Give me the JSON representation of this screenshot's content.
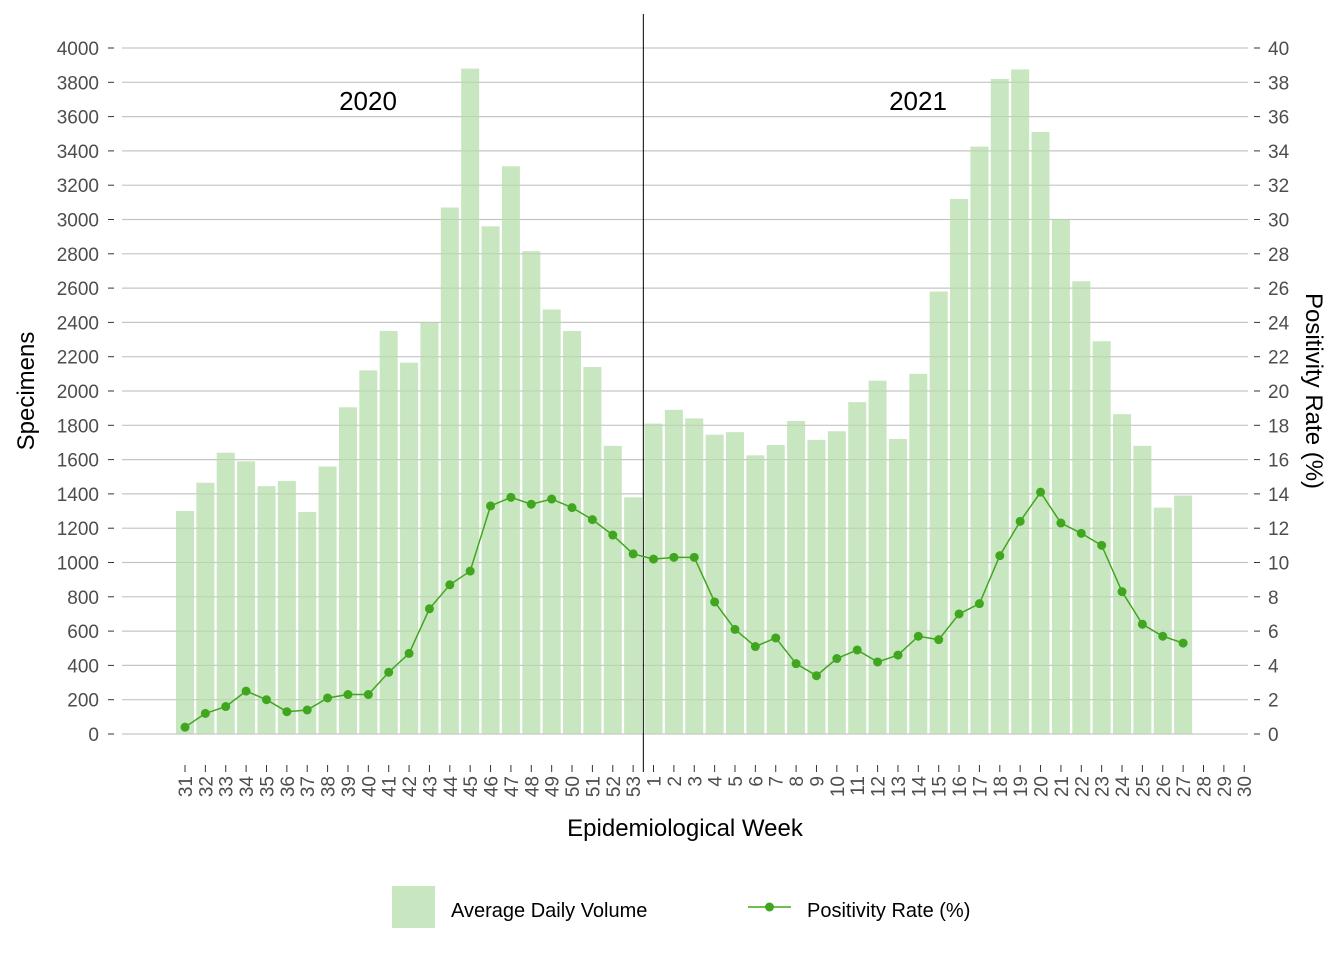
{
  "chart_data": {
    "type": "bar+line",
    "title": "",
    "xlabel": "Epidemiological Week",
    "ylabel_left": "Specimens",
    "ylabel_right": "Positivity Rate (%)",
    "ylim_left": [
      0,
      4000
    ],
    "ylim_right": [
      0,
      40
    ],
    "y_ticks_left": [
      0,
      200,
      400,
      600,
      800,
      1000,
      1200,
      1400,
      1600,
      1800,
      2000,
      2200,
      2400,
      2600,
      2800,
      3000,
      3200,
      3400,
      3600,
      3800,
      4000
    ],
    "y_ticks_right": [
      0,
      2,
      4,
      6,
      8,
      10,
      12,
      14,
      16,
      18,
      20,
      22,
      24,
      26,
      28,
      30,
      32,
      34,
      36,
      38,
      40
    ],
    "grid": true,
    "legend_position": "bottom",
    "year_labels": [
      "2020",
      "2021"
    ],
    "divider_after_category": "53",
    "categories": [
      "31",
      "32",
      "33",
      "34",
      "35",
      "36",
      "37",
      "38",
      "39",
      "40",
      "41",
      "42",
      "43",
      "44",
      "45",
      "46",
      "47",
      "48",
      "49",
      "50",
      "51",
      "52",
      "53",
      "1",
      "2",
      "3",
      "4",
      "5",
      "6",
      "7",
      "8",
      "9",
      "10",
      "11",
      "12",
      "13",
      "14",
      "15",
      "16",
      "17",
      "18",
      "19",
      "20",
      "21",
      "22",
      "23",
      "24",
      "25",
      "26",
      "27",
      "28",
      "29",
      "30"
    ],
    "series": [
      {
        "name": "Average Daily Volume",
        "type": "bar",
        "axis": "left",
        "color": "#c8e6bf",
        "values": [
          1300,
          1465,
          1640,
          1590,
          1445,
          1475,
          1295,
          1560,
          1905,
          2120,
          2350,
          2165,
          2400,
          3070,
          3880,
          2960,
          3310,
          2815,
          2475,
          2350,
          2140,
          1680,
          1380,
          1810,
          1890,
          1840,
          1745,
          1760,
          1625,
          1685,
          1825,
          1715,
          1765,
          1935,
          2060,
          1720,
          2100,
          2580,
          3120,
          3425,
          3820,
          3875,
          3510,
          3000,
          2640,
          2290,
          1865,
          1680,
          1320,
          1390,
          null,
          null,
          null
        ]
      },
      {
        "name": "Positivity Rate (%)",
        "type": "line",
        "axis": "right",
        "color": "#41a61f",
        "values": [
          0.4,
          1.2,
          1.6,
          2.5,
          2.0,
          1.3,
          1.4,
          2.1,
          2.3,
          2.3,
          3.6,
          4.7,
          7.3,
          8.7,
          9.5,
          13.3,
          13.8,
          13.4,
          13.7,
          13.2,
          12.5,
          11.6,
          10.5,
          10.2,
          10.3,
          10.3,
          7.7,
          6.1,
          5.1,
          5.6,
          4.1,
          3.4,
          4.4,
          4.9,
          4.2,
          4.6,
          5.7,
          5.5,
          7.0,
          7.6,
          10.4,
          12.4,
          14.1,
          12.3,
          11.7,
          11.0,
          8.3,
          6.4,
          5.7,
          5.3,
          null,
          null,
          null
        ]
      }
    ]
  }
}
